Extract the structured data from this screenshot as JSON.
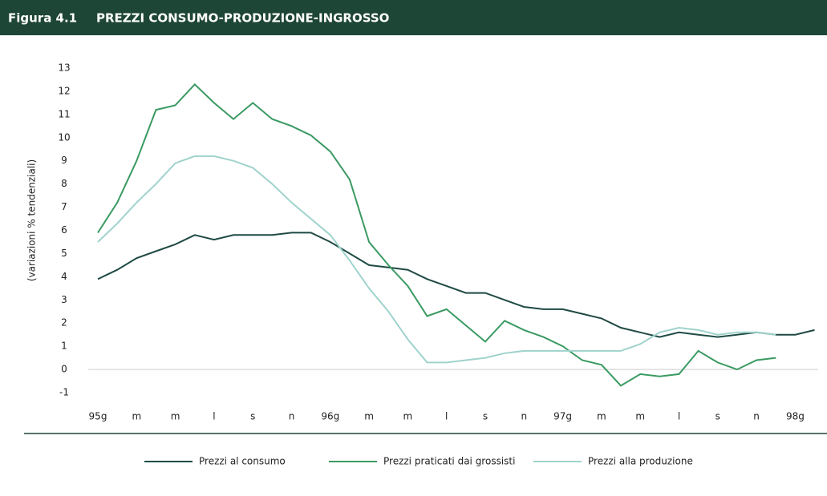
{
  "chart_data": {
    "type": "line",
    "figure_label": "Figura 4.1",
    "title": "PREZZI CONSUMO-PRODUZIONE-INGROSSO",
    "y_label": "(variazioni % tendenziali)",
    "categories": [
      "95g",
      null,
      "m",
      null,
      "m",
      null,
      "l",
      null,
      "s",
      null,
      "n",
      null,
      "96g",
      null,
      "m",
      null,
      "m",
      null,
      "l",
      null,
      "s",
      null,
      "n",
      null,
      "97g",
      null,
      "m",
      null,
      "m",
      null,
      "l",
      null,
      "s",
      null,
      "n",
      null,
      "98g",
      null
    ],
    "series": [
      {
        "name": "Prezzi al consumo",
        "color": "#1f4a44",
        "values": [
          3.9,
          4.3,
          4.8,
          5.1,
          5.4,
          5.8,
          5.6,
          5.8,
          5.8,
          5.8,
          5.9,
          5.9,
          5.5,
          5.0,
          4.5,
          4.4,
          4.3,
          3.9,
          3.6,
          3.3,
          3.3,
          3.0,
          2.7,
          2.6,
          2.6,
          2.4,
          2.2,
          1.8,
          1.6,
          1.4,
          1.6,
          1.5,
          1.4,
          1.5,
          1.6,
          1.5,
          1.5,
          1.7
        ]
      },
      {
        "name": "Prezzi praticati dai grossisti",
        "color": "#3a9a62",
        "values": [
          5.9,
          7.2,
          9.0,
          11.2,
          11.4,
          12.3,
          11.5,
          10.8,
          11.5,
          10.8,
          10.5,
          10.1,
          9.4,
          8.2,
          5.5,
          4.5,
          3.6,
          2.3,
          2.6,
          1.9,
          1.2,
          2.1,
          1.7,
          1.4,
          1.0,
          0.4,
          0.2,
          -0.7,
          -0.2,
          -0.3,
          -0.2,
          0.8,
          0.3,
          0.0,
          0.4,
          0.5,
          null,
          null
        ]
      },
      {
        "name": "Prezzi alla produzione",
        "color": "#9fd3cc",
        "values": [
          5.5,
          6.3,
          7.2,
          8.0,
          8.9,
          9.2,
          9.2,
          9.0,
          8.7,
          8.0,
          7.2,
          6.5,
          5.8,
          4.7,
          3.5,
          2.5,
          1.3,
          0.3,
          0.3,
          0.4,
          0.5,
          0.7,
          0.8,
          0.8,
          0.8,
          0.8,
          0.8,
          0.8,
          1.1,
          1.6,
          1.8,
          1.7,
          1.5,
          1.6,
          1.6,
          1.5,
          null,
          null
        ]
      }
    ],
    "ylim": [
      -1,
      13
    ],
    "yticks": [
      -1,
      0,
      1,
      2,
      3,
      4,
      5,
      6,
      7,
      8,
      9,
      10,
      11,
      12,
      13
    ]
  }
}
